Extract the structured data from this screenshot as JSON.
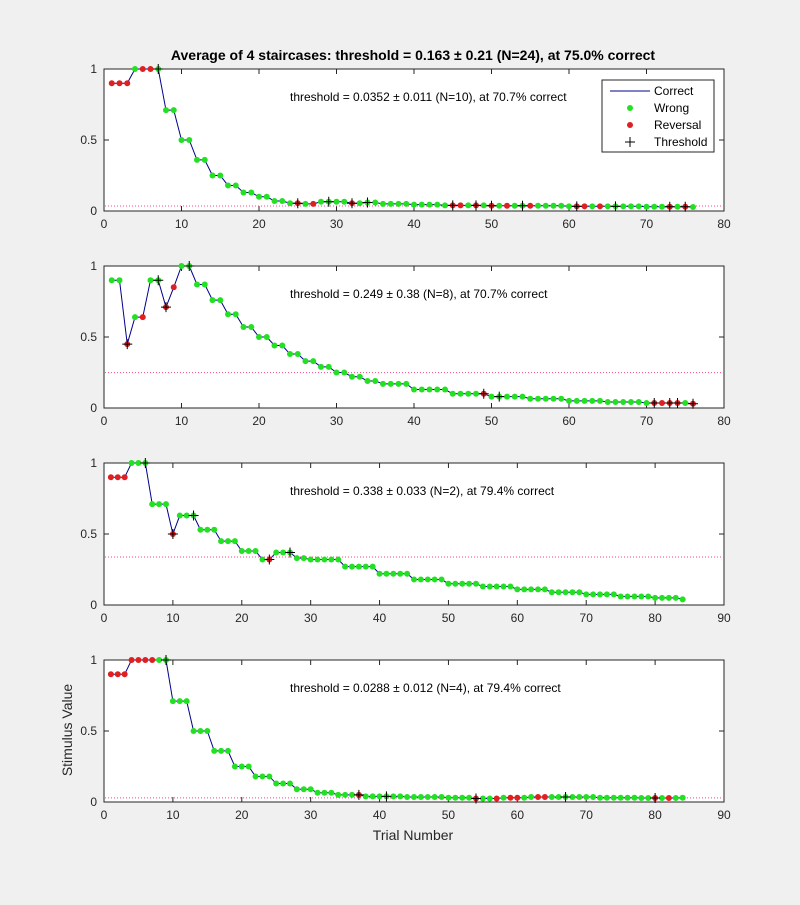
{
  "figure": {
    "title": "Average of 4 staircases: threshold = 0.163 ± 0.21 (N=24), at 75.0% correct",
    "xlabel": "Trial Number",
    "ylabel": "Stimulus Value"
  },
  "legend": {
    "position": "top-right of first panel",
    "entries": [
      {
        "label": "Correct",
        "color": "#00008b",
        "marker": "line"
      },
      {
        "label": "Wrong",
        "color": "#22e022",
        "marker": "dot"
      },
      {
        "label": "Reversal",
        "color": "#e02020",
        "marker": "dot"
      },
      {
        "label": "Threshold",
        "color": "#000000",
        "marker": "plus"
      }
    ]
  },
  "colors": {
    "line": "#00008b",
    "correct_dot": "#22e022",
    "reversal_dot": "#e02020",
    "threshold_marker": "#000000",
    "threshold_line": "#ff4488"
  },
  "chart_data": [
    {
      "type": "line",
      "annotation": "threshold = 0.0352 ± 0.011 (N=10), at 70.7% correct",
      "xlim": [
        0,
        80
      ],
      "ylim": [
        0,
        1
      ],
      "xticks": [
        0,
        10,
        20,
        30,
        40,
        50,
        60,
        70,
        80
      ],
      "yticks": [
        0,
        0.5,
        1
      ],
      "ytick_labels": [
        "0",
        "0.5",
        "1"
      ],
      "threshold": 0.0352,
      "n_trials": 76,
      "levels": [
        [
          1,
          0.9
        ],
        [
          4,
          1
        ],
        [
          8,
          0.71
        ],
        [
          10,
          0.5
        ],
        [
          12,
          0.36
        ],
        [
          14,
          0.25
        ],
        [
          16,
          0.18
        ],
        [
          18,
          0.13
        ],
        [
          20,
          0.1
        ],
        [
          22,
          0.07
        ],
        [
          24,
          0.055
        ],
        [
          26,
          0.05
        ],
        [
          28,
          0.065
        ],
        [
          30,
          0.065
        ],
        [
          32,
          0.055
        ],
        [
          34,
          0.06
        ],
        [
          36,
          0.05
        ],
        [
          40,
          0.045
        ],
        [
          44,
          0.04
        ],
        [
          50,
          0.037
        ],
        [
          60,
          0.033
        ],
        [
          70,
          0.03
        ],
        [
          76,
          0.028
        ]
      ],
      "reversals": [
        1,
        2,
        3,
        5,
        6,
        25,
        27,
        32,
        45,
        46,
        48,
        50,
        52,
        55,
        61,
        62,
        64,
        73,
        75
      ],
      "threshold_markers": [
        7,
        25,
        29,
        32,
        34,
        45,
        48,
        50,
        54,
        61,
        66,
        73,
        75
      ]
    },
    {
      "type": "line",
      "annotation": "threshold = 0.249 ± 0.38 (N=8), at 70.7% correct",
      "xlim": [
        0,
        80
      ],
      "ylim": [
        0,
        1
      ],
      "xticks": [
        0,
        10,
        20,
        30,
        40,
        50,
        60,
        70,
        80
      ],
      "yticks": [
        0,
        0.5,
        1
      ],
      "ytick_labels": [
        "0",
        "0.5",
        "1"
      ],
      "threshold": 0.249,
      "n_trials": 76,
      "levels": [
        [
          1,
          0.9
        ],
        [
          3,
          0.45
        ],
        [
          4,
          0.64
        ],
        [
          5,
          0.64
        ],
        [
          6,
          0.9
        ],
        [
          8,
          0.71
        ],
        [
          9,
          0.85
        ],
        [
          10,
          1
        ],
        [
          12,
          0.87
        ],
        [
          14,
          0.76
        ],
        [
          16,
          0.66
        ],
        [
          18,
          0.57
        ],
        [
          20,
          0.5
        ],
        [
          22,
          0.44
        ],
        [
          24,
          0.38
        ],
        [
          26,
          0.33
        ],
        [
          28,
          0.29
        ],
        [
          30,
          0.25
        ],
        [
          32,
          0.22
        ],
        [
          34,
          0.19
        ],
        [
          36,
          0.17
        ],
        [
          40,
          0.13
        ],
        [
          45,
          0.1
        ],
        [
          50,
          0.08
        ],
        [
          55,
          0.065
        ],
        [
          60,
          0.05
        ],
        [
          65,
          0.042
        ],
        [
          70,
          0.035
        ],
        [
          76,
          0.03
        ]
      ],
      "reversals": [
        3,
        5,
        8,
        9,
        49,
        71,
        72,
        73,
        74,
        76
      ],
      "threshold_markers": [
        3,
        7,
        8,
        11,
        49,
        51,
        71,
        73,
        74,
        76
      ]
    },
    {
      "type": "line",
      "annotation": "threshold = 0.338 ± 0.033 (N=2), at 79.4% correct",
      "xlim": [
        0,
        90
      ],
      "ylim": [
        0,
        1
      ],
      "xticks": [
        0,
        10,
        20,
        30,
        40,
        50,
        60,
        70,
        80,
        90
      ],
      "yticks": [
        0,
        0.5,
        1
      ],
      "ytick_labels": [
        "0",
        "0.5",
        "1"
      ],
      "threshold": 0.338,
      "n_trials": 84,
      "levels": [
        [
          1,
          0.9
        ],
        [
          4,
          1
        ],
        [
          7,
          0.71
        ],
        [
          10,
          0.5
        ],
        [
          11,
          0.63
        ],
        [
          14,
          0.53
        ],
        [
          17,
          0.45
        ],
        [
          20,
          0.38
        ],
        [
          23,
          0.32
        ],
        [
          25,
          0.37
        ],
        [
          28,
          0.33
        ],
        [
          30,
          0.32
        ],
        [
          35,
          0.27
        ],
        [
          40,
          0.22
        ],
        [
          45,
          0.18
        ],
        [
          50,
          0.15
        ],
        [
          55,
          0.13
        ],
        [
          60,
          0.11
        ],
        [
          65,
          0.09
        ],
        [
          70,
          0.075
        ],
        [
          75,
          0.06
        ],
        [
          80,
          0.05
        ],
        [
          84,
          0.04
        ]
      ],
      "reversals": [
        1,
        2,
        3,
        10,
        24
      ],
      "threshold_markers": [
        6,
        10,
        13,
        24,
        27
      ]
    },
    {
      "type": "line",
      "annotation": "threshold = 0.0288 ± 0.012 (N=4), at 79.4% correct",
      "xlim": [
        0,
        90
      ],
      "ylim": [
        0,
        1
      ],
      "xticks": [
        0,
        10,
        20,
        30,
        40,
        50,
        60,
        70,
        80,
        90
      ],
      "yticks": [
        0,
        0.5,
        1
      ],
      "ytick_labels": [
        "0",
        "0.5",
        "1"
      ],
      "threshold": 0.0288,
      "n_trials": 84,
      "levels": [
        [
          1,
          0.9
        ],
        [
          4,
          1
        ],
        [
          10,
          0.71
        ],
        [
          13,
          0.5
        ],
        [
          16,
          0.36
        ],
        [
          19,
          0.25
        ],
        [
          22,
          0.18
        ],
        [
          25,
          0.13
        ],
        [
          28,
          0.09
        ],
        [
          31,
          0.065
        ],
        [
          34,
          0.05
        ],
        [
          38,
          0.04
        ],
        [
          44,
          0.035
        ],
        [
          50,
          0.03
        ],
        [
          54,
          0.025
        ],
        [
          58,
          0.03
        ],
        [
          62,
          0.035
        ],
        [
          66,
          0.035
        ],
        [
          72,
          0.03
        ],
        [
          78,
          0.028
        ],
        [
          84,
          0.03
        ]
      ],
      "reversals": [
        1,
        2,
        3,
        4,
        5,
        6,
        7,
        37,
        54,
        57,
        59,
        60,
        63,
        64,
        80,
        82
      ],
      "threshold_markers": [
        9,
        37,
        41,
        54,
        67,
        80
      ]
    }
  ]
}
